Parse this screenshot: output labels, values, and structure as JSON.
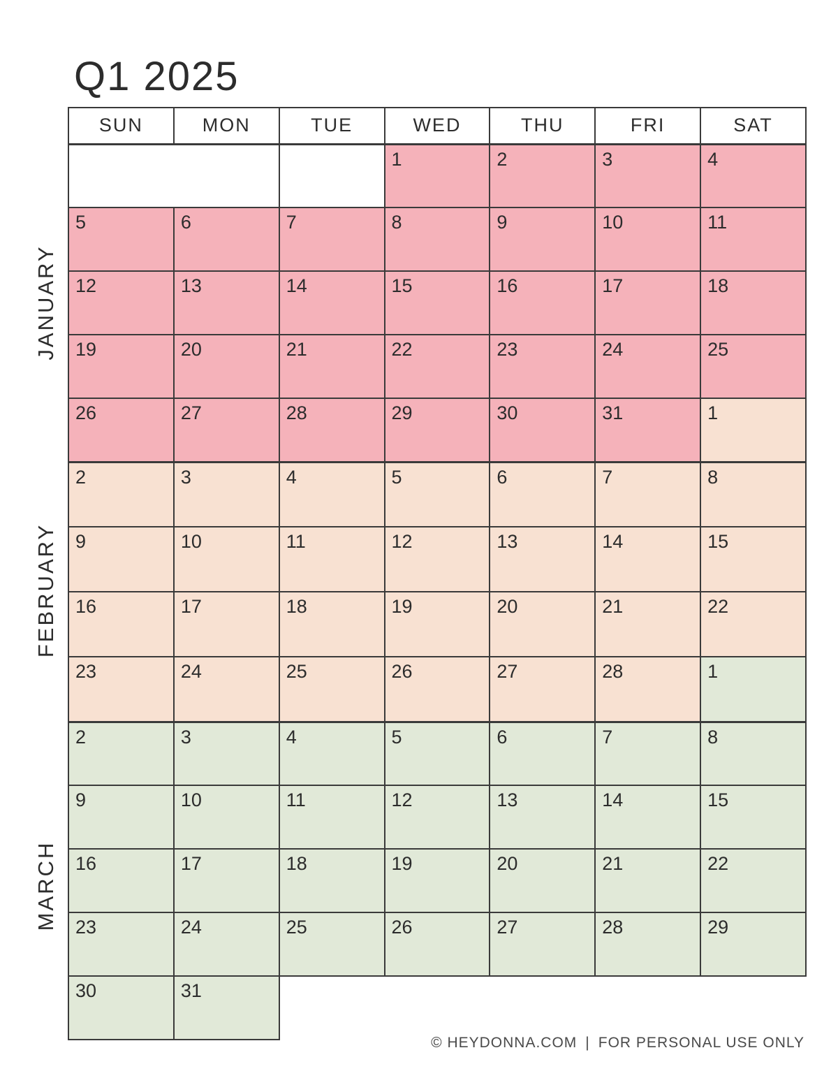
{
  "title": "Q1 2025",
  "day_headers": [
    "SUN",
    "MON",
    "TUE",
    "WED",
    "THU",
    "FRI",
    "SAT"
  ],
  "colors": {
    "january": "#f5b2ba",
    "february": "#f8e1d2",
    "march": "#e1e9d8",
    "border": "#3a3a3a",
    "text": "#2c2c2c",
    "footer_text": "#4a4a4a"
  },
  "months": [
    {
      "name": "JANUARY",
      "key": "january",
      "rows": [
        [
          {
            "blank": true,
            "span": 2
          },
          {
            "blank": true
          },
          1,
          2,
          3,
          4
        ],
        [
          5,
          6,
          7,
          8,
          9,
          10,
          11
        ],
        [
          12,
          13,
          14,
          15,
          16,
          17,
          18
        ],
        [
          19,
          20,
          21,
          22,
          23,
          24,
          25
        ],
        [
          26,
          27,
          28,
          29,
          30,
          31,
          {
            "day": 1,
            "month": "february"
          }
        ]
      ]
    },
    {
      "name": "FEBRUARY",
      "key": "february",
      "rows": [
        [
          2,
          3,
          4,
          5,
          6,
          7,
          8
        ],
        [
          9,
          10,
          11,
          12,
          13,
          14,
          15
        ],
        [
          16,
          17,
          18,
          19,
          20,
          21,
          22
        ],
        [
          23,
          24,
          25,
          26,
          27,
          28,
          {
            "day": 1,
            "month": "march"
          }
        ]
      ]
    },
    {
      "name": "MARCH",
      "key": "march",
      "rows": [
        [
          2,
          3,
          4,
          5,
          6,
          7,
          8
        ],
        [
          9,
          10,
          11,
          12,
          13,
          14,
          15
        ],
        [
          16,
          17,
          18,
          19,
          20,
          21,
          22
        ],
        [
          23,
          24,
          25,
          26,
          27,
          28,
          29
        ],
        [
          30,
          31,
          {
            "void": true
          },
          {
            "void": true
          },
          {
            "void": true
          },
          {
            "void": true
          },
          {
            "void": true
          }
        ]
      ]
    }
  ],
  "footer": {
    "copyright": "© HEYDONNA.COM",
    "divider": "|",
    "usage": "FOR PERSONAL USE ONLY"
  }
}
